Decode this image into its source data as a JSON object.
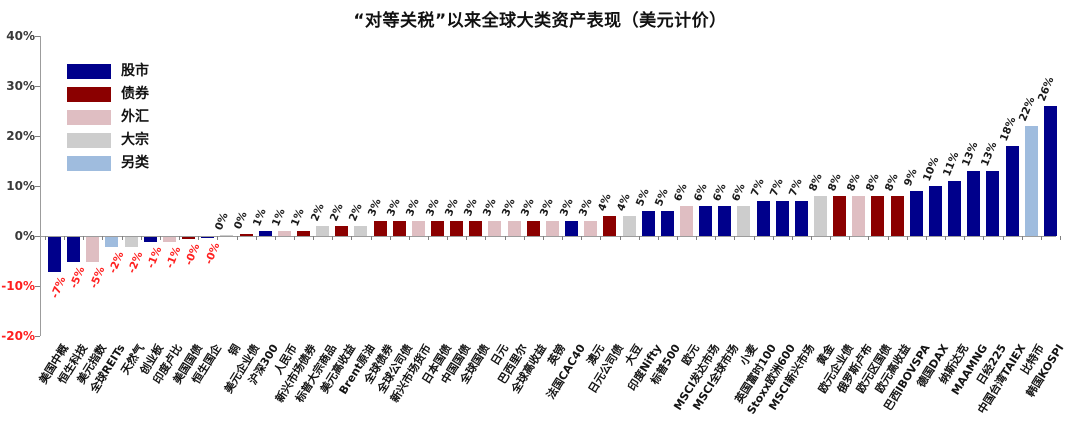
{
  "chart_data": {
    "type": "bar",
    "title": "“对等关税”以来全球大类资产表现（美元计价）",
    "ylabel": "",
    "xlabel": "",
    "ylim": [
      -20,
      40
    ],
    "ytick_step": 10,
    "yticks": [
      "40%",
      "30%",
      "20%",
      "10%",
      "0%",
      "-10%",
      "-20%"
    ],
    "grid": false,
    "legend_position": "upper-left-inside",
    "value_label_color_negative": "#ff1f1f",
    "value_label_color_positive": "#1a1a1a",
    "legend": [
      {
        "label": "股市",
        "color": "#00008B"
      },
      {
        "label": "债券",
        "color": "#8B0000"
      },
      {
        "label": "外汇",
        "color": "#DFBEC2"
      },
      {
        "label": "大宗",
        "color": "#CDCDCD"
      },
      {
        "label": "另类",
        "color": "#9FBCDE"
      }
    ],
    "bars": [
      {
        "label": "美国中概",
        "value": -7,
        "display": "-7%",
        "category": "股市"
      },
      {
        "label": "恒生科技",
        "value": -5,
        "display": "-5%",
        "category": "股市"
      },
      {
        "label": "美元指数",
        "value": -5,
        "display": "-5%",
        "category": "外汇"
      },
      {
        "label": "全球REITs",
        "value": -2,
        "display": "-2%",
        "category": "另类"
      },
      {
        "label": "天然气",
        "value": -2,
        "display": "-2%",
        "category": "大宗"
      },
      {
        "label": "创业板",
        "value": -1,
        "display": "-1%",
        "category": "股市"
      },
      {
        "label": "印度卢比",
        "value": -1,
        "display": "-1%",
        "category": "外汇"
      },
      {
        "label": "美国国债",
        "value": -0.4,
        "display": "-0%",
        "category": "债券"
      },
      {
        "label": "恒生国企",
        "value": -0.15,
        "display": "-0%",
        "category": "股市"
      },
      {
        "label": "铜",
        "value": 0.15,
        "display": "0%",
        "category": "大宗"
      },
      {
        "label": "美元企业债",
        "value": 0.4,
        "display": "0%",
        "category": "债券"
      },
      {
        "label": "沪深300",
        "value": 1,
        "display": "1%",
        "category": "股市"
      },
      {
        "label": "人民币",
        "value": 1,
        "display": "1%",
        "category": "外汇"
      },
      {
        "label": "新兴市场债券",
        "value": 1,
        "display": "1%",
        "category": "债券"
      },
      {
        "label": "标普大宗商品",
        "value": 2,
        "display": "2%",
        "category": "大宗"
      },
      {
        "label": "美元高收益",
        "value": 2,
        "display": "2%",
        "category": "债券"
      },
      {
        "label": "Brent原油",
        "value": 2,
        "display": "2%",
        "category": "大宗"
      },
      {
        "label": "全球债券",
        "value": 3,
        "display": "3%",
        "category": "债券"
      },
      {
        "label": "全球公司债",
        "value": 3,
        "display": "3%",
        "category": "债券"
      },
      {
        "label": "新兴市场货币",
        "value": 3,
        "display": "3%",
        "category": "外汇"
      },
      {
        "label": "日本国债",
        "value": 3,
        "display": "3%",
        "category": "债券"
      },
      {
        "label": "中国国债",
        "value": 3,
        "display": "3%",
        "category": "债券"
      },
      {
        "label": "全球国债",
        "value": 3,
        "display": "3%",
        "category": "债券"
      },
      {
        "label": "日元",
        "value": 3,
        "display": "3%",
        "category": "外汇"
      },
      {
        "label": "巴西里尔",
        "value": 3,
        "display": "3%",
        "category": "外汇"
      },
      {
        "label": "全球高收益",
        "value": 3,
        "display": "3%",
        "category": "债券"
      },
      {
        "label": "英镑",
        "value": 3,
        "display": "3%",
        "category": "外汇"
      },
      {
        "label": "法国CAC40",
        "value": 3,
        "display": "3%",
        "category": "股市"
      },
      {
        "label": "澳元",
        "value": 3,
        "display": "3%",
        "category": "外汇"
      },
      {
        "label": "日元公司债",
        "value": 4,
        "display": "4%",
        "category": "债券"
      },
      {
        "label": "大豆",
        "value": 4,
        "display": "4%",
        "category": "大宗"
      },
      {
        "label": "印度Nifty",
        "value": 5,
        "display": "5%",
        "category": "股市"
      },
      {
        "label": "标普500",
        "value": 5,
        "display": "5%",
        "category": "股市"
      },
      {
        "label": "欧元",
        "value": 6,
        "display": "6%",
        "category": "外汇"
      },
      {
        "label": "MSCI发达市场",
        "value": 6,
        "display": "6%",
        "category": "股市"
      },
      {
        "label": "MSCI全球市场",
        "value": 6,
        "display": "6%",
        "category": "股市"
      },
      {
        "label": "小麦",
        "value": 6,
        "display": "6%",
        "category": "大宗"
      },
      {
        "label": "英国富时100",
        "value": 7,
        "display": "7%",
        "category": "股市"
      },
      {
        "label": "Stoxx欧洲600",
        "value": 7,
        "display": "7%",
        "category": "股市"
      },
      {
        "label": "MSCI新兴市场",
        "value": 7,
        "display": "7%",
        "category": "股市"
      },
      {
        "label": "黄金",
        "value": 8,
        "display": "8%",
        "category": "大宗"
      },
      {
        "label": "欧元企业债",
        "value": 8,
        "display": "8%",
        "category": "债券"
      },
      {
        "label": "俄罗斯卢布",
        "value": 8,
        "display": "8%",
        "category": "外汇"
      },
      {
        "label": "欧元区国债",
        "value": 8,
        "display": "8%",
        "category": "债券"
      },
      {
        "label": "欧元高收益",
        "value": 8,
        "display": "8%",
        "category": "债券"
      },
      {
        "label": "巴西IBOVSPA",
        "value": 9,
        "display": "9%",
        "category": "股市"
      },
      {
        "label": "德国DAX",
        "value": 10,
        "display": "10%",
        "category": "股市"
      },
      {
        "label": "纳斯达克",
        "value": 11,
        "display": "11%",
        "category": "股市"
      },
      {
        "label": "MAAMNG",
        "value": 13,
        "display": "13%",
        "category": "股市"
      },
      {
        "label": "日经225",
        "value": 13,
        "display": "13%",
        "category": "股市"
      },
      {
        "label": "中国台湾TAIEX",
        "value": 18,
        "display": "18%",
        "category": "股市"
      },
      {
        "label": "比特币",
        "value": 22,
        "display": "22%",
        "category": "另类"
      },
      {
        "label": "韩国KOSPI",
        "value": 26,
        "display": "26%",
        "category": "股市"
      }
    ]
  }
}
